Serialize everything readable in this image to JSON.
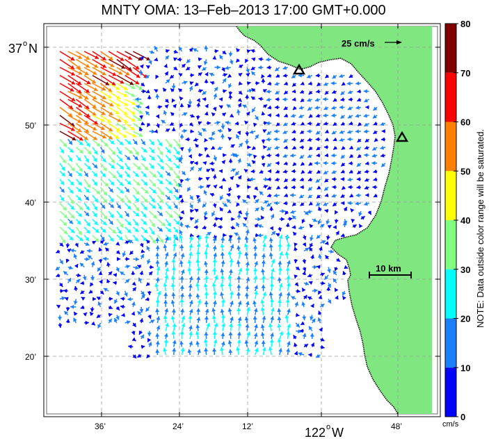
{
  "title": "MNTY OMA: 13–Feb–2013 17:00 GMT+0.000",
  "axes": {
    "y_top_label": "37",
    "y_top_degree": "o",
    "y_top_hemisphere": "N",
    "y_ticks": [
      "50’",
      "40’",
      "30’",
      "20’"
    ],
    "x_ticks": [
      "36’",
      "24’",
      "12’",
      "48’"
    ],
    "x_center_label": "122",
    "x_center_degree": "o",
    "x_center_hemisphere": "W"
  },
  "scale_vector_label": "25 cm/s",
  "scale_bar_label": "10 km",
  "colorbar": {
    "ticks": [
      "80",
      "70",
      "60",
      "50",
      "40",
      "30",
      "20",
      "10",
      "0"
    ],
    "unit": "cm/s",
    "note": "NOTE: Data outside color range will be saturated.",
    "colors": [
      "#0000ff",
      "#1a7fff",
      "#00ffff",
      "#80ff80",
      "#ffff00",
      "#ff8000",
      "#ff0000",
      "#800000"
    ]
  },
  "colors": {
    "land": "#80e680",
    "coast": "#000000",
    "grid": "#9a9a9a"
  },
  "icons": [
    "triangle-station-marker-icon",
    "triangle-station-marker-icon"
  ]
}
